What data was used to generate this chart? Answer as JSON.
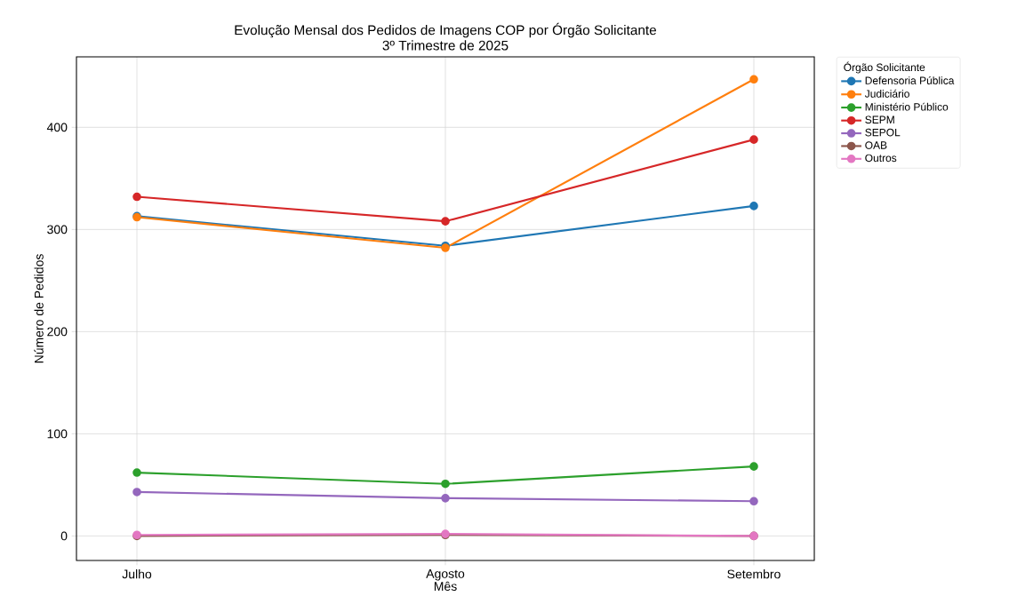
{
  "chart_data": {
    "type": "line",
    "title": "Evolução Mensal dos Pedidos de Imagens COP por Órgão Solicitante",
    "subtitle": "3º Trimestre de 2025",
    "xlabel": "Mês",
    "ylabel": "Número de Pedidos",
    "legend_title": "Órgão Solicitante",
    "categories": [
      "Julho",
      "Agosto",
      "Setembro"
    ],
    "series": [
      {
        "name": "Defensoria Pública",
        "color": "#1f77b4",
        "values": [
          313,
          284,
          323
        ]
      },
      {
        "name": "Judiciário",
        "color": "#ff7f0e",
        "values": [
          312,
          282,
          447
        ]
      },
      {
        "name": "Ministério Público",
        "color": "#2ca02c",
        "values": [
          62,
          51,
          68
        ]
      },
      {
        "name": "SEPM",
        "color": "#d62728",
        "values": [
          332,
          308,
          388
        ]
      },
      {
        "name": "SEPOL",
        "color": "#9467bd",
        "values": [
          43,
          37,
          34
        ]
      },
      {
        "name": "OAB",
        "color": "#8c564b",
        "values": [
          0,
          1,
          0
        ]
      },
      {
        "name": "Outros",
        "color": "#e377c2",
        "values": [
          1,
          2,
          0
        ]
      }
    ],
    "ylim": [
      -24,
      469
    ],
    "yticks": [
      0,
      100,
      200,
      300,
      400
    ],
    "grid": true,
    "legend": "right",
    "marker": "circle",
    "line_style": "solid"
  }
}
